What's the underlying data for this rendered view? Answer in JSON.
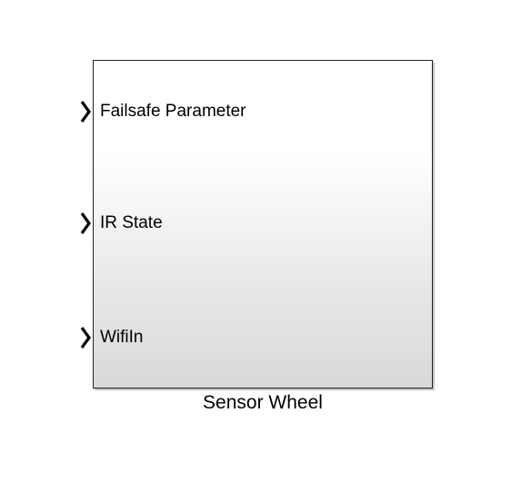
{
  "block": {
    "name": "Sensor Wheel",
    "inputs": [
      {
        "label": "Failsafe Parameter"
      },
      {
        "label": "IR State"
      },
      {
        "label": "WifiIn"
      }
    ]
  },
  "colors": {
    "border": "#222222",
    "gradient_top": "#ffffff",
    "gradient_bottom": "#d9d9d9",
    "text": "#000000"
  },
  "icons": {
    "input_port": "chevron-right-icon"
  }
}
